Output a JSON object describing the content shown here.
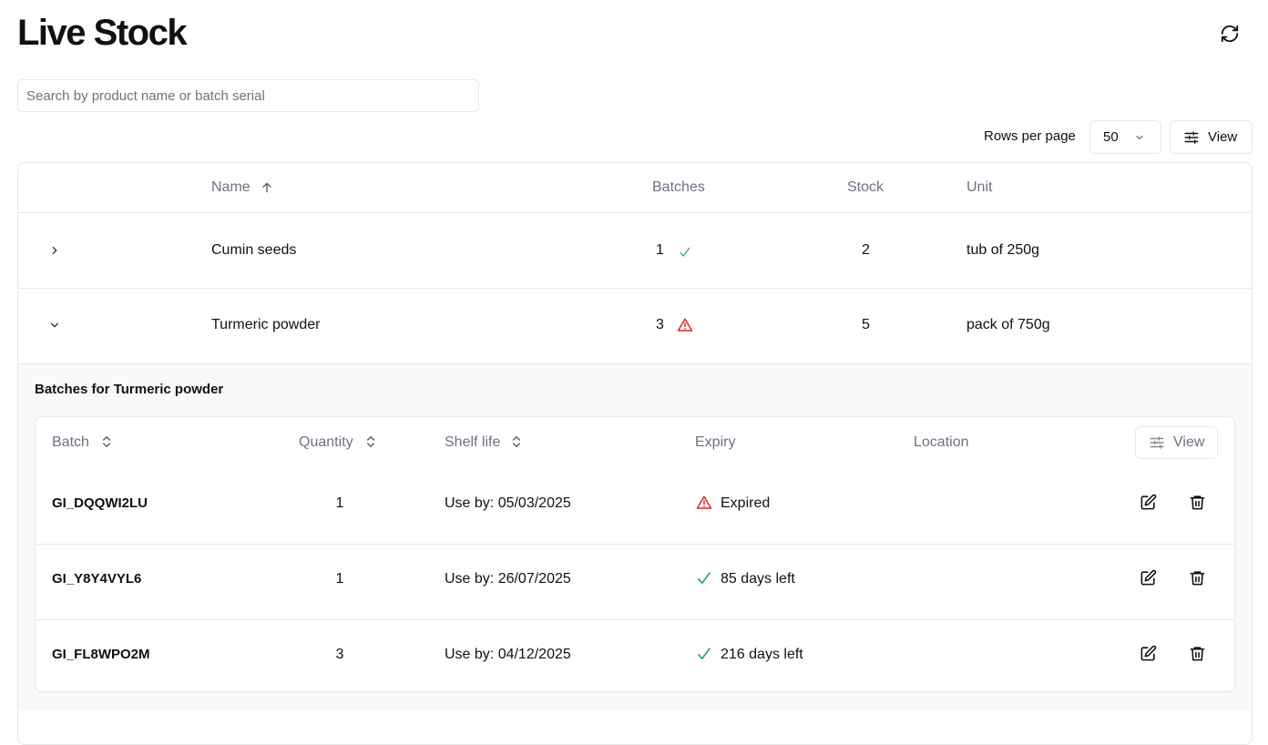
{
  "header": {
    "title": "Live Stock"
  },
  "search": {
    "placeholder": "Search by product name or batch serial"
  },
  "toolbar": {
    "rows_per_page_label": "Rows per page",
    "rows_per_page": 50,
    "view_button": "View"
  },
  "table": {
    "columns": [
      "Name",
      "Batches",
      "Stock",
      "Unit"
    ],
    "rows": [
      {
        "name": "Cumin seeds",
        "batches": 1,
        "stock": 2,
        "unit": "tub of 250g"
      },
      {
        "name": "Turmeric powder",
        "batches": 3,
        "stock": 5,
        "unit": "pack of 750g"
      }
    ]
  },
  "batches": {
    "title": "Batches for Turmeric powder",
    "columns": [
      "Batch",
      "Quantity",
      "Shelf life",
      "Expiry",
      "Location"
    ],
    "view_button": "View",
    "rows": [
      {
        "batch": "GI_DQQWI2LU",
        "quantity": 1,
        "shelf_life": "Use by: 05/03/2025",
        "expiry": "Expired"
      },
      {
        "batch": "GI_Y8Y4VYL6",
        "quantity": 1,
        "shelf_life": "Use by: 26/07/2025",
        "expiry": "85 days left"
      },
      {
        "batch": "GI_FL8WPO2M",
        "quantity": 3,
        "shelf_life": "Use by: 04/12/2025",
        "expiry": "216 days left"
      }
    ]
  }
}
